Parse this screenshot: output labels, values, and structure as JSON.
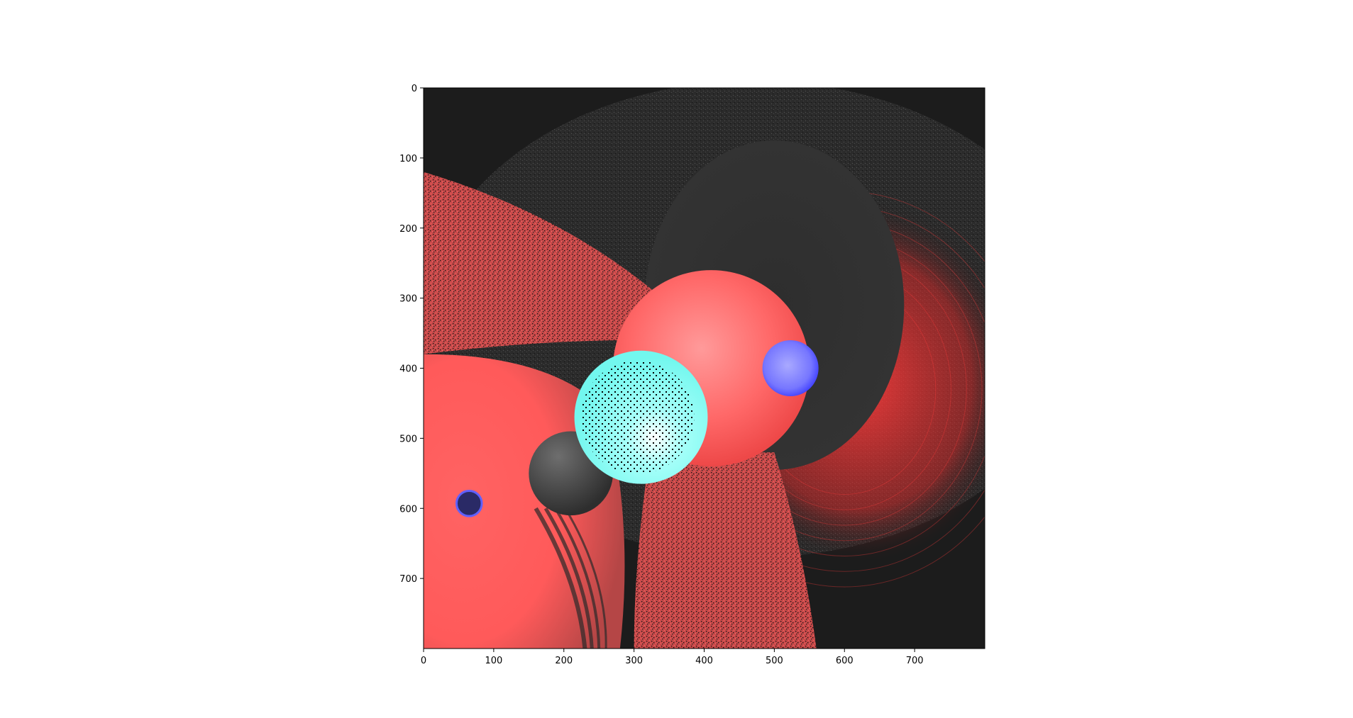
{
  "chart_data": {
    "type": "image",
    "title": "",
    "xlabel": "",
    "ylabel": "",
    "xlim": [
      0,
      800
    ],
    "ylim": [
      800,
      0
    ],
    "y_inverted": true,
    "grid": false,
    "legend": "none",
    "x_ticks": [
      0,
      100,
      200,
      300,
      400,
      500,
      600,
      700
    ],
    "y_ticks": [
      0,
      100,
      200,
      300,
      400,
      500,
      600,
      700
    ],
    "x_tick_labels": [
      "0",
      "100",
      "200",
      "300",
      "400",
      "500",
      "600",
      "700"
    ],
    "y_tick_labels": [
      "0",
      "100",
      "200",
      "300",
      "400",
      "500",
      "600",
      "700"
    ],
    "image_content": {
      "description_colors": {
        "background_dark": "#1c1c1c",
        "floor_gray": "#3a3a3a",
        "red": "#ff5a5a",
        "bright_red": "#ff3c3c",
        "cyan": "#7ffcf4",
        "blue": "#7b7bff",
        "pink": "#ff8f8f"
      },
      "spheres": [
        {
          "name": "large red sphere",
          "cx": 410,
          "cy": 400,
          "r": 140,
          "color": "#ff5e5e"
        },
        {
          "name": "cyan sphere",
          "cx": 310,
          "cy": 470,
          "r": 95,
          "color": "#7ffcf4"
        },
        {
          "name": "blue sphere",
          "cx": 523,
          "cy": 400,
          "r": 40,
          "color": "#7b7bff"
        },
        {
          "name": "dark gray sphere",
          "cx": 210,
          "cy": 550,
          "r": 60,
          "color": "#4a4a4a"
        },
        {
          "name": "small blue ring",
          "cx": 65,
          "cy": 593,
          "r": 18,
          "color": "#6060ff"
        }
      ]
    }
  }
}
